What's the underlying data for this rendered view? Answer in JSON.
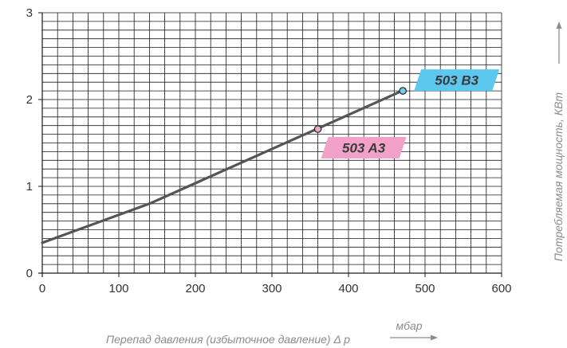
{
  "chart_data": {
    "type": "line",
    "xlabel": "Перепад давления (избыточное давление) Δ р",
    "xunit": "мбар",
    "ylabel": "Потребляемая мощность, КВт",
    "xlim": [
      0,
      600
    ],
    "ylim": [
      0,
      3
    ],
    "x_ticks": [
      "0",
      "100",
      "200",
      "300",
      "400",
      "500",
      "600"
    ],
    "y_ticks": [
      "0",
      "1",
      "2",
      "3"
    ],
    "grid": true,
    "grid_step_x": 20,
    "grid_step_y": 0.1,
    "series": [
      {
        "x": [
          0,
          140,
          470
        ],
        "y": [
          0.35,
          0.8,
          2.1
        ],
        "color": "#555555"
      }
    ],
    "markers": [
      {
        "label": "503 A3",
        "x": 360,
        "y": 1.66,
        "color": "#f2a2c8",
        "dot_color": "#f3a6cb"
      },
      {
        "label": "503 B3",
        "x": 471,
        "y": 2.1,
        "color": "#5dc8ef",
        "dot_color": "#74ccee"
      }
    ]
  }
}
